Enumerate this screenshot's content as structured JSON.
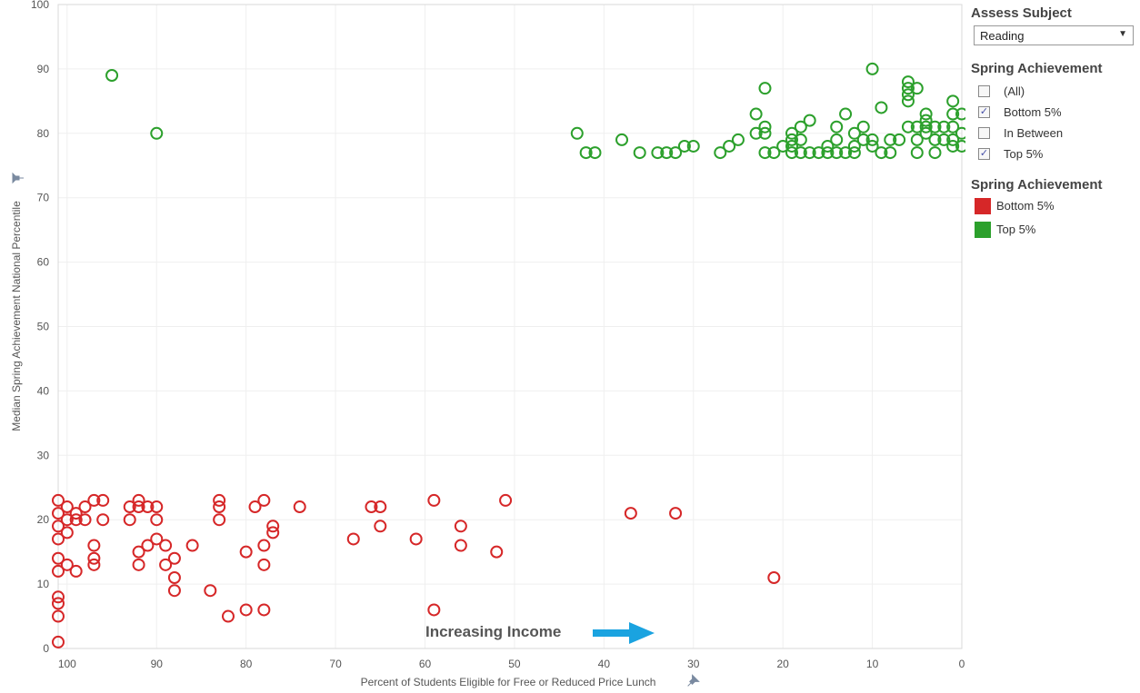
{
  "chart_data": {
    "type": "scatter",
    "xlabel": "Percent of Students Eligible for Free or Reduced Price Lunch",
    "ylabel": "Median Spring Achievement National Percentile",
    "xlim": [
      101,
      0
    ],
    "ylim": [
      0,
      100
    ],
    "x_ticks": [
      100,
      90,
      80,
      70,
      60,
      50,
      40,
      30,
      20,
      10,
      0
    ],
    "y_ticks": [
      0,
      10,
      20,
      30,
      40,
      50,
      60,
      70,
      80,
      90,
      100
    ],
    "grid": true,
    "annotation": "Increasing Income",
    "series": [
      {
        "name": "Bottom 5%",
        "color": "#d62728",
        "points": [
          [
            101,
            23
          ],
          [
            101,
            21
          ],
          [
            101,
            19
          ],
          [
            101,
            17
          ],
          [
            101,
            14
          ],
          [
            101,
            12
          ],
          [
            101,
            8
          ],
          [
            101,
            7
          ],
          [
            101,
            5
          ],
          [
            101,
            1
          ],
          [
            100,
            22
          ],
          [
            100,
            20
          ],
          [
            100,
            18
          ],
          [
            100,
            13
          ],
          [
            99,
            21
          ],
          [
            99,
            20
          ],
          [
            99,
            12
          ],
          [
            98,
            22
          ],
          [
            98,
            20
          ],
          [
            97,
            23
          ],
          [
            97,
            16
          ],
          [
            97,
            14
          ],
          [
            97,
            13
          ],
          [
            96,
            23
          ],
          [
            96,
            20
          ],
          [
            93,
            22
          ],
          [
            93,
            20
          ],
          [
            92,
            23
          ],
          [
            92,
            22
          ],
          [
            92,
            15
          ],
          [
            92,
            13
          ],
          [
            91,
            22
          ],
          [
            91,
            16
          ],
          [
            90,
            22
          ],
          [
            90,
            20
          ],
          [
            90,
            17
          ],
          [
            89,
            16
          ],
          [
            89,
            13
          ],
          [
            88,
            14
          ],
          [
            88,
            11
          ],
          [
            88,
            9
          ],
          [
            86,
            16
          ],
          [
            84,
            9
          ],
          [
            83,
            23
          ],
          [
            83,
            22
          ],
          [
            83,
            20
          ],
          [
            82,
            5
          ],
          [
            80,
            15
          ],
          [
            80,
            6
          ],
          [
            79,
            22
          ],
          [
            78,
            23
          ],
          [
            78,
            16
          ],
          [
            78,
            13
          ],
          [
            78,
            6
          ],
          [
            77,
            19
          ],
          [
            77,
            18
          ],
          [
            74,
            22
          ],
          [
            68,
            17
          ],
          [
            66,
            22
          ],
          [
            65,
            22
          ],
          [
            65,
            19
          ],
          [
            61,
            17
          ],
          [
            59,
            23
          ],
          [
            59,
            6
          ],
          [
            56,
            19
          ],
          [
            56,
            16
          ],
          [
            52,
            15
          ],
          [
            51,
            23
          ],
          [
            37,
            21
          ],
          [
            32,
            21
          ],
          [
            21,
            11
          ]
        ]
      },
      {
        "name": "Top 5%",
        "color": "#2ca02c",
        "points": [
          [
            95,
            89
          ],
          [
            90,
            80
          ],
          [
            43,
            80
          ],
          [
            42,
            77
          ],
          [
            41,
            77
          ],
          [
            38,
            79
          ],
          [
            36,
            77
          ],
          [
            34,
            77
          ],
          [
            33,
            77
          ],
          [
            32,
            77
          ],
          [
            31,
            78
          ],
          [
            30,
            78
          ],
          [
            27,
            77
          ],
          [
            26,
            78
          ],
          [
            25,
            79
          ],
          [
            23,
            83
          ],
          [
            23,
            80
          ],
          [
            22,
            87
          ],
          [
            22,
            81
          ],
          [
            22,
            80
          ],
          [
            22,
            77
          ],
          [
            21,
            77
          ],
          [
            20,
            78
          ],
          [
            19,
            80
          ],
          [
            19,
            79
          ],
          [
            19,
            78
          ],
          [
            19,
            77
          ],
          [
            18,
            81
          ],
          [
            18,
            79
          ],
          [
            18,
            77
          ],
          [
            17,
            82
          ],
          [
            17,
            77
          ],
          [
            16,
            77
          ],
          [
            15,
            78
          ],
          [
            15,
            77
          ],
          [
            14,
            81
          ],
          [
            14,
            79
          ],
          [
            14,
            77
          ],
          [
            13,
            83
          ],
          [
            13,
            77
          ],
          [
            12,
            80
          ],
          [
            12,
            78
          ],
          [
            12,
            77
          ],
          [
            11,
            81
          ],
          [
            11,
            79
          ],
          [
            10,
            90
          ],
          [
            10,
            79
          ],
          [
            10,
            78
          ],
          [
            9,
            84
          ],
          [
            9,
            77
          ],
          [
            8,
            79
          ],
          [
            8,
            77
          ],
          [
            7,
            79
          ],
          [
            6,
            88
          ],
          [
            6,
            87
          ],
          [
            6,
            86
          ],
          [
            6,
            85
          ],
          [
            6,
            81
          ],
          [
            5,
            87
          ],
          [
            5,
            81
          ],
          [
            5,
            79
          ],
          [
            5,
            77
          ],
          [
            4,
            83
          ],
          [
            4,
            82
          ],
          [
            4,
            81
          ],
          [
            4,
            80
          ],
          [
            3,
            81
          ],
          [
            3,
            79
          ],
          [
            3,
            77
          ],
          [
            2,
            81
          ],
          [
            2,
            79
          ],
          [
            1,
            85
          ],
          [
            1,
            83
          ],
          [
            1,
            81
          ],
          [
            1,
            79
          ],
          [
            1,
            78
          ],
          [
            0,
            83
          ],
          [
            0,
            80
          ],
          [
            0,
            78
          ]
        ]
      }
    ]
  },
  "sidebar": {
    "assess_title": "Assess Subject",
    "assess_value": "Reading",
    "filter_title": "Spring Achievement",
    "filters": [
      {
        "label": "(All)",
        "checked": false
      },
      {
        "label": "Bottom 5%",
        "checked": true
      },
      {
        "label": "In Between",
        "checked": false
      },
      {
        "label": "Top 5%",
        "checked": true
      }
    ],
    "legend_title": "Spring Achievement",
    "legend": [
      {
        "label": "Bottom 5%",
        "color": "#d62728"
      },
      {
        "label": "Top 5%",
        "color": "#2ca02c"
      }
    ]
  }
}
